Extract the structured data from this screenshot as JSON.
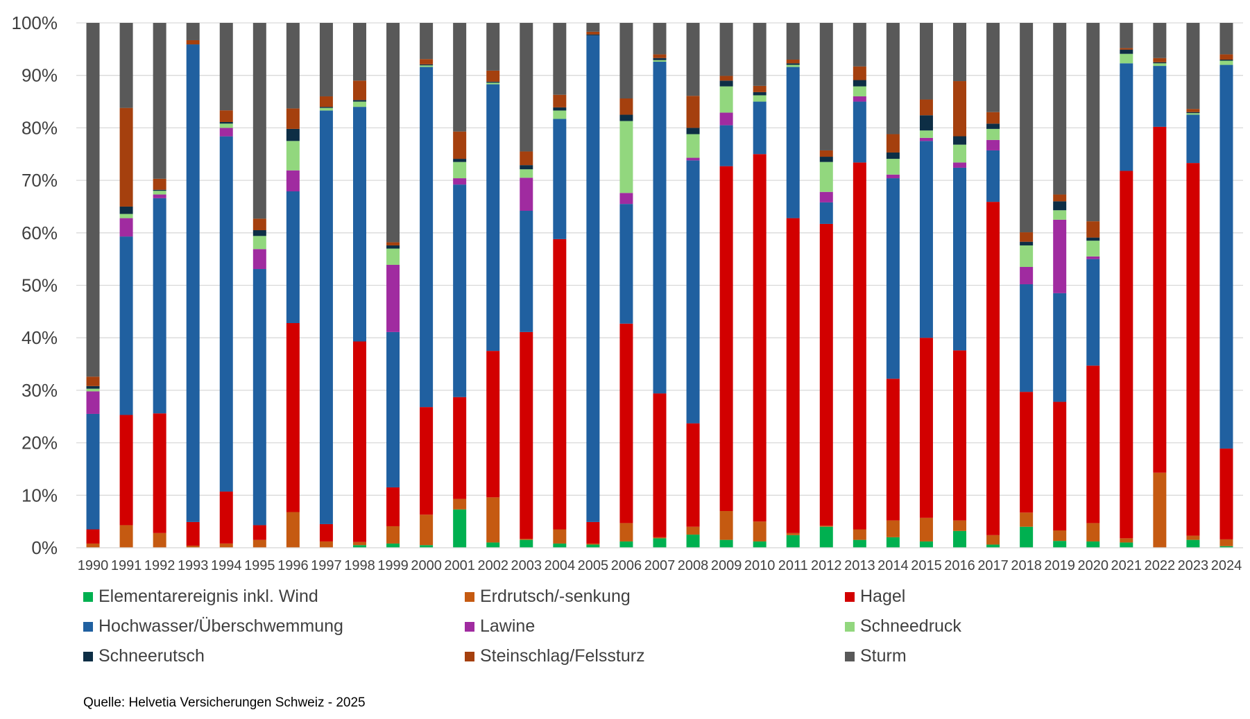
{
  "chart_data": {
    "type": "bar",
    "stacked": "percent",
    "ylim": [
      0,
      100
    ],
    "ytick_labels": [
      "0%",
      "10%",
      "20%",
      "30%",
      "40%",
      "50%",
      "60%",
      "70%",
      "80%",
      "90%",
      "100%"
    ],
    "grid": "horizontal",
    "legend_position": "bottom",
    "categories": [
      "1990",
      "1991",
      "1992",
      "1993",
      "1994",
      "1995",
      "1996",
      "1997",
      "1998",
      "1999",
      "2000",
      "2001",
      "2002",
      "2003",
      "2004",
      "2005",
      "2006",
      "2007",
      "2008",
      "2009",
      "2010",
      "2011",
      "2012",
      "2013",
      "2014",
      "2015",
      "2016",
      "2017",
      "2018",
      "2019",
      "2020",
      "2021",
      "2022",
      "2023",
      "2024"
    ],
    "series": [
      {
        "name": "Elementarereignis inkl. Wind",
        "color": "#00b050",
        "values": [
          0,
          0,
          0,
          0,
          0,
          0,
          0,
          0,
          0.5,
          0.8,
          0.5,
          7.3,
          1.0,
          1.5,
          0.8,
          0.6,
          1.2,
          1.8,
          2.5,
          1.5,
          1.2,
          2.4,
          4.0,
          1.5,
          2.0,
          1.2,
          3.2,
          0.6,
          4.0,
          1.3,
          1.2,
          1.0,
          0,
          1.5,
          0.3
        ]
      },
      {
        "name": "Erdrutsch/-senkung",
        "color": "#c55a11",
        "values": [
          0.8,
          4.3,
          2.8,
          0.4,
          0.8,
          1.5,
          6.8,
          1.2,
          0.6,
          3.3,
          5.8,
          2.0,
          8.6,
          0.2,
          2.7,
          0.2,
          3.5,
          0.2,
          1.5,
          5.5,
          3.8,
          0.4,
          0.2,
          2.0,
          3.2,
          4.5,
          2.0,
          1.8,
          2.7,
          2.0,
          3.5,
          0.8,
          14.3,
          0.8,
          1.3
        ]
      },
      {
        "name": "Hagel",
        "color": "#d20000",
        "values": [
          2.7,
          21.0,
          22.8,
          4.5,
          9.8,
          2.8,
          36.0,
          3.3,
          38.2,
          7.4,
          20.5,
          19.4,
          27.9,
          39.4,
          55.3,
          4.1,
          38.0,
          27.4,
          19.7,
          65.7,
          70.0,
          60.0,
          57.5,
          69.9,
          27.0,
          34.3,
          32.4,
          63.5,
          23.0,
          24.5,
          30.0,
          70.0,
          65.9,
          71.0,
          17.3
        ]
      },
      {
        "name": "Hochwasser/Überschwemmung",
        "color": "#2060a0",
        "values": [
          22.0,
          34.0,
          41.0,
          91.0,
          67.0,
          48.8,
          25.1,
          78.8,
          44.7,
          29.6,
          64.8,
          40.5,
          50.8,
          23.1,
          22.9,
          92.7,
          22.8,
          63.2,
          50.1,
          7.8,
          10.0,
          28.8,
          4.1,
          11.6,
          38.2,
          37.5,
          34.8,
          9.8,
          20.5,
          20.7,
          20.3,
          20.5,
          11.6,
          9.2,
          73.1
        ]
      },
      {
        "name": "Lawine",
        "color": "#a02ba0",
        "values": [
          4.3,
          3.5,
          0.7,
          0,
          1.6,
          3.8,
          4.0,
          0,
          0,
          12.8,
          0,
          1.2,
          0,
          6.3,
          0,
          0,
          2.1,
          0,
          0.5,
          2.4,
          0,
          0,
          2.0,
          1.0,
          0.7,
          0.6,
          1.0,
          2.0,
          3.3,
          14.0,
          0.5,
          0,
          0,
          0,
          0
        ]
      },
      {
        "name": "Schneedruck",
        "color": "#92d77e",
        "values": [
          0.5,
          0.8,
          0.7,
          0,
          0.8,
          2.5,
          5.6,
          0.5,
          1.0,
          3.1,
          0.3,
          3.1,
          0.3,
          1.6,
          1.6,
          0,
          13.7,
          0.3,
          4.5,
          5.0,
          1.2,
          0.4,
          5.7,
          1.9,
          3.0,
          1.4,
          3.4,
          2.1,
          4.1,
          1.8,
          3.0,
          1.8,
          0.5,
          0.3,
          0.8
        ]
      },
      {
        "name": "Schneerutsch",
        "color": "#0d2e45",
        "values": [
          0.5,
          1.4,
          0.2,
          0,
          0.3,
          1.1,
          2.3,
          0.2,
          0.3,
          0.6,
          0.2,
          0.6,
          0.2,
          0.8,
          0.6,
          0.2,
          1.2,
          0.4,
          1.2,
          1.1,
          0.6,
          0.3,
          1.0,
          1.2,
          1.2,
          2.9,
          1.6,
          1.0,
          0.7,
          1.7,
          0.6,
          0.8,
          0.2,
          0.2,
          0.2
        ]
      },
      {
        "name": "Steinschlag/Felssturz",
        "color": "#a5400e",
        "values": [
          1.8,
          18.8,
          2.1,
          0.8,
          2.2,
          2.2,
          3.9,
          2.0,
          3.7,
          0.6,
          1.0,
          5.2,
          2.1,
          2.6,
          2.4,
          0.5,
          3.1,
          0.7,
          6.1,
          0.9,
          1.2,
          0.7,
          1.2,
          2.6,
          3.5,
          3.0,
          10.5,
          2.2,
          1.8,
          1.3,
          3.1,
          0.3,
          0.8,
          0.6,
          1.0
        ]
      },
      {
        "name": "Sturm",
        "color": "#595959",
        "values": [
          67.4,
          16.2,
          29.7,
          3.3,
          16.5,
          37.3,
          16.3,
          14.0,
          11.0,
          41.8,
          6.9,
          20.7,
          9.1,
          24.5,
          13.7,
          1.7,
          14.4,
          6.0,
          13.9,
          10.1,
          12.0,
          7.0,
          24.3,
          8.3,
          21.2,
          14.6,
          11.1,
          17.0,
          39.9,
          32.7,
          37.8,
          4.8,
          6.7,
          16.4,
          6.0
        ]
      }
    ]
  },
  "source": "Quelle: Helvetia Versicherungen Schweiz - 2025"
}
